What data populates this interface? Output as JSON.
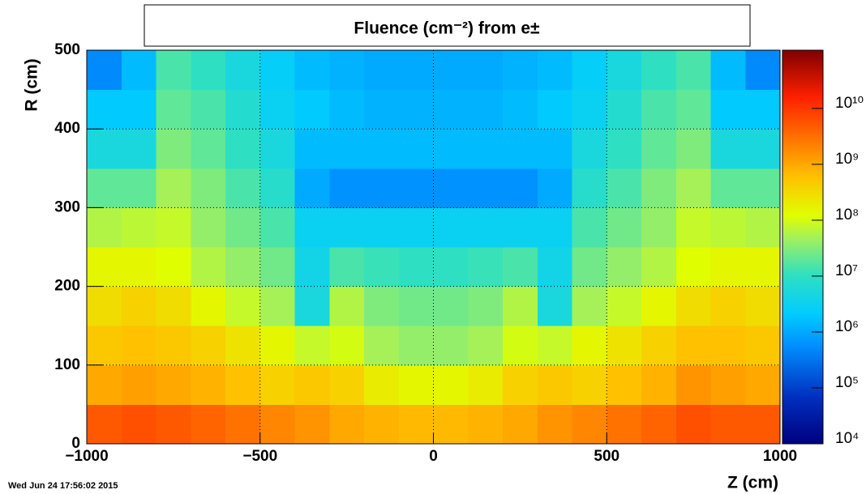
{
  "chart_data": {
    "type": "heatmap",
    "title": "Fluence (cm⁻²) from  e±",
    "x_label": "Z (cm)",
    "y_label": "R (cm)",
    "timestamp": "Wed Jun 24 17:56:02 2015",
    "xbins": [
      -1000,
      -900,
      -800,
      -700,
      -600,
      -500,
      -400,
      -300,
      -200,
      -100,
      0,
      100,
      200,
      300,
      400,
      500,
      600,
      700,
      800,
      900,
      1000
    ],
    "ybins": [
      0,
      50,
      100,
      150,
      200,
      250,
      300,
      350,
      400,
      450,
      500
    ],
    "z_values": [
      [
        5000000000.0,
        6000000000.0,
        5000000000.0,
        4000000000.0,
        3000000000.0,
        2000000000.0,
        1500000000.0,
        1000000000.0,
        800000000.0,
        700000000.0,
        700000000.0,
        800000000.0,
        1000000000.0,
        1500000000.0,
        2000000000.0,
        3000000000.0,
        4000000000.0,
        6000000000.0,
        5000000000.0,
        5000000000.0
      ],
      [
        1000000000.0,
        1200000000.0,
        1000000000.0,
        800000000.0,
        600000000.0,
        400000000.0,
        500000000.0,
        400000000.0,
        200000000.0,
        150000000.0,
        150000000.0,
        200000000.0,
        400000000.0,
        500000000.0,
        400000000.0,
        600000000.0,
        800000000.0,
        1500000000.0,
        1200000000.0,
        1000000000.0
      ],
      [
        500000000.0,
        600000000.0,
        500000000.0,
        400000000.0,
        250000000.0,
        150000000.0,
        80000000.0,
        100000000.0,
        50000000.0,
        40000000.0,
        40000000.0,
        50000000.0,
        100000000.0,
        80000000.0,
        150000000.0,
        250000000.0,
        400000000.0,
        600000000.0,
        600000000.0,
        500000000.0
      ],
      [
        300000000.0,
        400000000.0,
        300000000.0,
        150000000.0,
        80000000.0,
        50000000.0,
        5000000.0,
        60000000.0,
        30000000.0,
        25000000.0,
        25000000.0,
        30000000.0,
        60000000.0,
        5000000.0,
        50000000.0,
        80000000.0,
        150000000.0,
        300000000.0,
        400000000.0,
        300000000.0
      ],
      [
        150000000.0,
        150000000.0,
        120000000.0,
        60000000.0,
        40000000.0,
        25000000.0,
        4000000.0,
        15000000.0,
        12000000.0,
        10000000.0,
        10000000.0,
        12000000.0,
        15000000.0,
        4000000.0,
        25000000.0,
        40000000.0,
        60000000.0,
        120000000.0,
        150000000.0,
        150000000.0
      ],
      [
        60000000.0,
        70000000.0,
        80000000.0,
        40000000.0,
        25000000.0,
        15000000.0,
        3000000.0,
        3000000.0,
        3000000.0,
        3000000.0,
        3000000.0,
        3000000.0,
        3000000.0,
        3000000.0,
        15000000.0,
        25000000.0,
        40000000.0,
        80000000.0,
        70000000.0,
        60000000.0
      ],
      [
        20000000.0,
        20000000.0,
        50000000.0,
        30000000.0,
        15000000.0,
        8000000.0,
        1000000.0,
        600000.0,
        600000.0,
        600000.0,
        600000.0,
        600000.0,
        600000.0,
        1000000.0,
        8000000.0,
        15000000.0,
        30000000.0,
        50000000.0,
        20000000.0,
        20000000.0
      ],
      [
        5000000.0,
        5000000.0,
        30000000.0,
        20000000.0,
        10000000.0,
        5000000.0,
        1500000.0,
        1500000.0,
        1500000.0,
        1500000.0,
        1500000.0,
        1500000.0,
        1500000.0,
        1500000.0,
        5000000.0,
        10000000.0,
        20000000.0,
        30000000.0,
        5000000.0,
        5000000.0
      ],
      [
        2000000.0,
        2000000.0,
        20000000.0,
        15000000.0,
        7000000.0,
        3000000.0,
        2000000.0,
        1500000.0,
        1200000.0,
        1200000.0,
        1200000.0,
        1200000.0,
        1500000.0,
        2000000.0,
        3000000.0,
        7000000.0,
        15000000.0,
        20000000.0,
        2000000.0,
        2000000.0
      ],
      [
        500000.0,
        1500000.0,
        15000000.0,
        10000000.0,
        5000000.0,
        2500000.0,
        1500000.0,
        1200000.0,
        1000000.0,
        1000000.0,
        1000000.0,
        1000000.0,
        1200000.0,
        1500000.0,
        2500000.0,
        5000000.0,
        10000000.0,
        15000000.0,
        1500000.0,
        500000.0
      ]
    ],
    "xlim": [
      -1000,
      1000
    ],
    "ylim": [
      0,
      500
    ],
    "zlim": [
      10000,
      110000000000
    ],
    "z_log": true,
    "xticks": [
      {
        "value": -1000,
        "label": "−1000"
      },
      {
        "value": -500,
        "label": "−500"
      },
      0,
      500,
      1000
    ],
    "yticks": [
      0,
      100,
      200,
      300,
      400,
      500
    ],
    "zticks": [
      {
        "value": 10000,
        "label": "10⁴"
      },
      {
        "value": 100000,
        "label": "10⁵"
      },
      {
        "value": 1000000,
        "label": "10⁶"
      },
      {
        "value": 10000000,
        "label": "10⁷"
      },
      {
        "value": 100000000,
        "label": "10⁸"
      },
      {
        "value": 1000000000,
        "label": "10⁹"
      },
      {
        "value": 10000000000,
        "label": "10¹⁰"
      }
    ],
    "grid": true
  }
}
